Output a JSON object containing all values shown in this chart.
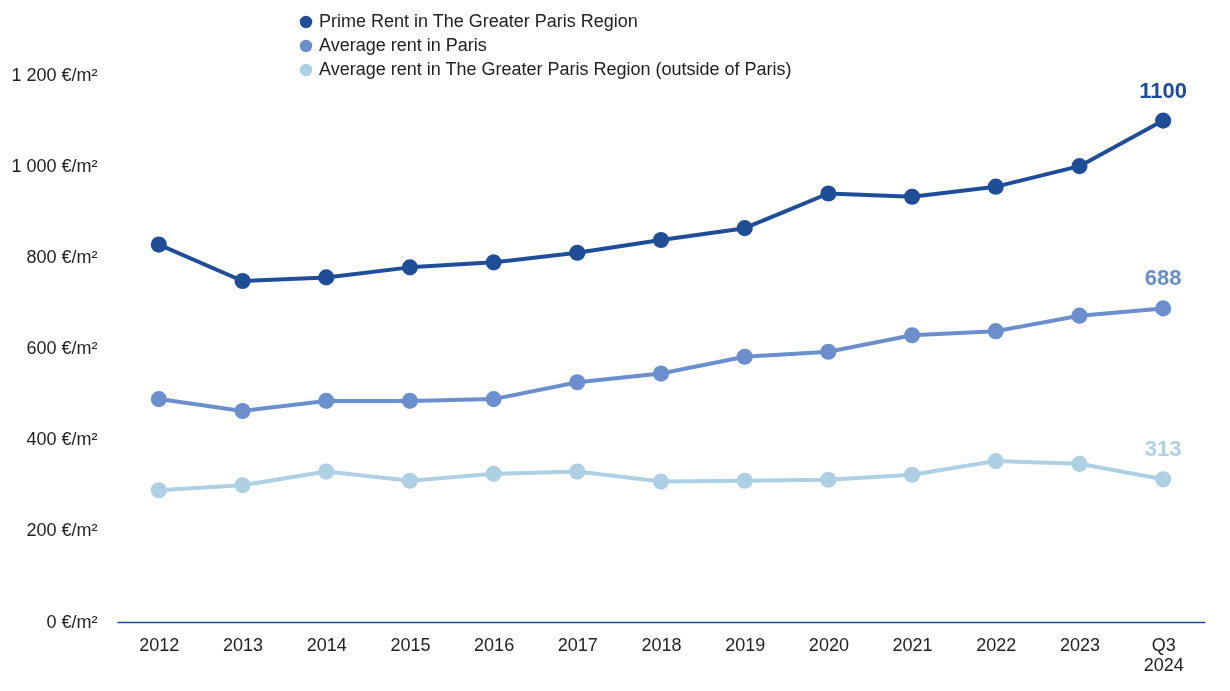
{
  "chart_data": {
    "type": "line",
    "categories": [
      "2012",
      "2013",
      "2014",
      "2015",
      "2016",
      "2017",
      "2018",
      "2019",
      "2020",
      "2021",
      "2022",
      "2023",
      "Q3 2024"
    ],
    "series": [
      {
        "name": "Prime Rent in The Greater Paris Region",
        "color": "#1f4e99",
        "values": [
          828,
          748,
          756,
          778,
          789,
          810,
          838,
          864,
          940,
          933,
          955,
          1000,
          1100
        ],
        "value_labels": [
          null,
          null,
          null,
          null,
          null,
          null,
          null,
          null,
          null,
          null,
          null,
          null,
          "1100"
        ]
      },
      {
        "name": "Average rent in Paris",
        "color": "#6b8fcc",
        "values": [
          489,
          463,
          485,
          485,
          489,
          526,
          545,
          582,
          593,
          629,
          638,
          672,
          688
        ],
        "value_labels": [
          null,
          null,
          null,
          null,
          null,
          null,
          null,
          null,
          null,
          null,
          null,
          null,
          "688"
        ]
      },
      {
        "name": "Average rent in The Greater Paris Region (outside of Paris)",
        "color": "#aed0e4",
        "values": [
          289,
          300,
          330,
          310,
          325,
          330,
          308,
          310,
          312,
          323,
          353,
          347,
          313
        ],
        "value_labels": [
          null,
          null,
          null,
          null,
          null,
          null,
          null,
          null,
          null,
          null,
          null,
          null,
          "313"
        ]
      }
    ],
    "ylim": [
      0,
      1200
    ],
    "yticks": [
      {
        "value": 0,
        "label": "0 €/m²"
      },
      {
        "value": 200,
        "label": "200 €/m²"
      },
      {
        "value": 400,
        "label": "400 €/m²"
      },
      {
        "value": 600,
        "label": "600 €/m²"
      },
      {
        "value": 800,
        "label": "800 €/m²"
      },
      {
        "value": 1000,
        "label": "1 000 €/m²"
      },
      {
        "value": 1200,
        "label": "1 200 €/m²"
      }
    ],
    "legend": "top",
    "marker": "circle",
    "line_style": "solid"
  }
}
